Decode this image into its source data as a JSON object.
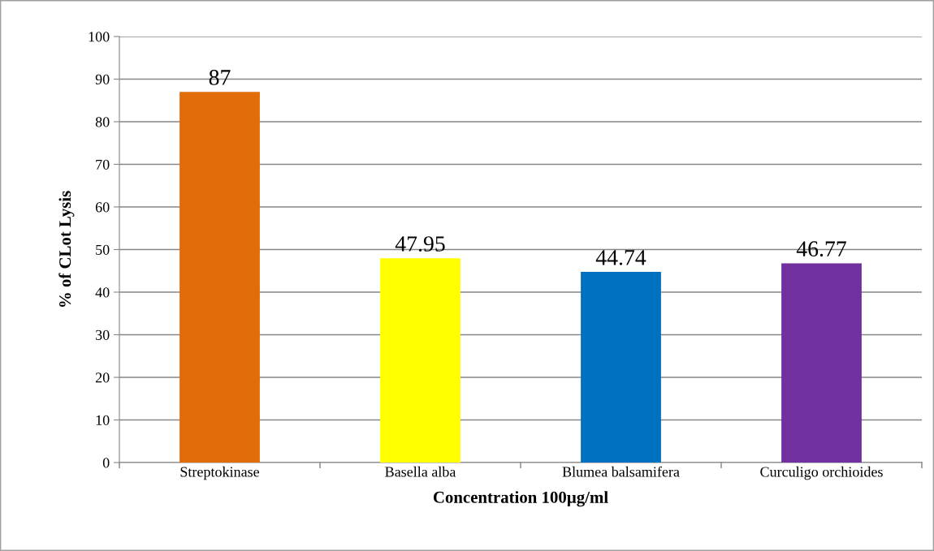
{
  "chart_data": {
    "type": "bar",
    "xlabel": "Concentration 100µg/ml",
    "ylabel": "% of CLot Lysis",
    "categories": [
      "Streptokinase",
      "Basella alba",
      "Blumea balsamifera",
      "Curculigo orchioides"
    ],
    "values": [
      87,
      47.95,
      44.74,
      46.77
    ],
    "colors": [
      "#e36c0a",
      "#ffff00",
      "#0070c0",
      "#7030a0"
    ],
    "ylim": [
      0,
      100
    ],
    "yticks": [
      0,
      10,
      20,
      30,
      40,
      50,
      60,
      70,
      80,
      90,
      100
    ],
    "grid": "y",
    "data_labels": true,
    "legend": false
  }
}
